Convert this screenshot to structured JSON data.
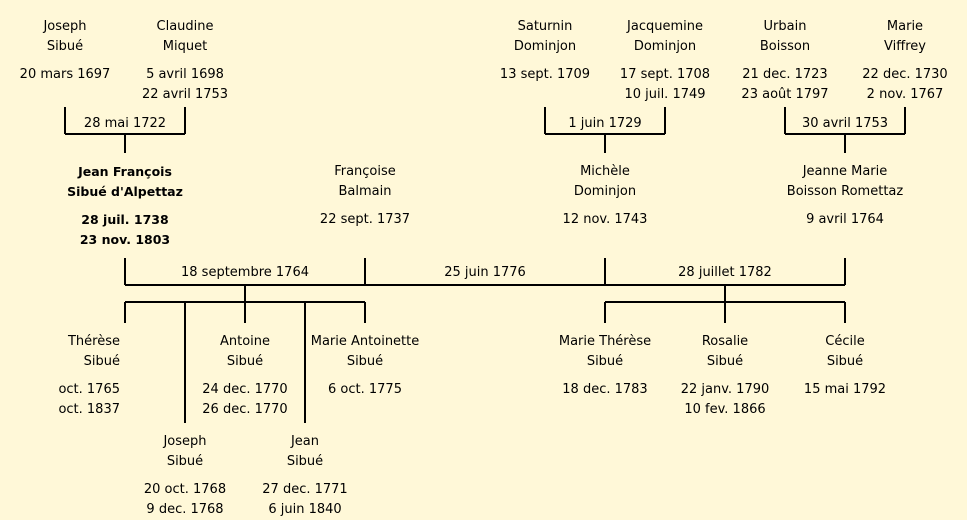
{
  "people": [
    {
      "id": "joseph_sibue_sr",
      "name": [
        "Joseph",
        "Sibué"
      ],
      "dates": [
        "20 mars 1697"
      ]
    },
    {
      "id": "claudine_miquet",
      "name": [
        "Claudine",
        "Miquet"
      ],
      "dates": [
        "5 avril 1698",
        "22 avril 1753"
      ]
    },
    {
      "id": "saturnin_dominjon",
      "name": [
        "Saturnin",
        "Dominjon"
      ],
      "dates": [
        "13 sept. 1709"
      ]
    },
    {
      "id": "jacquemine_dominjon",
      "name": [
        "Jacquemine",
        "Dominjon"
      ],
      "dates": [
        "17 sept. 1708",
        "10 juil. 1749"
      ]
    },
    {
      "id": "urbain_boisson",
      "name": [
        "Urbain",
        "Boisson"
      ],
      "dates": [
        "21 dec. 1723",
        "23 août 1797"
      ]
    },
    {
      "id": "marie_viffrey",
      "name": [
        "Marie",
        "Viffrey"
      ],
      "dates": [
        "22 dec. 1730",
        "2 nov. 1767"
      ]
    },
    {
      "id": "jean_francois",
      "name": [
        "Jean François",
        "Sibué d'Alpettaz"
      ],
      "dates": [
        "28 juil. 1738",
        "23 nov. 1803"
      ],
      "bold": true
    },
    {
      "id": "francoise_balmain",
      "name": [
        "Françoise",
        "Balmain"
      ],
      "dates": [
        "22 sept. 1737"
      ]
    },
    {
      "id": "michele_dominjon",
      "name": [
        "Michèle",
        "Dominjon"
      ],
      "dates": [
        "12 nov. 1743"
      ]
    },
    {
      "id": "jeanne_marie",
      "name": [
        "Jeanne Marie",
        "Boisson Romettaz"
      ],
      "dates": [
        "9 avril 1764"
      ]
    },
    {
      "id": "therese",
      "name": [
        "Thérèse",
        "Sibué"
      ],
      "dates": [
        "oct. 1765",
        "oct. 1837"
      ]
    },
    {
      "id": "antoine",
      "name": [
        "Antoine",
        "Sibué"
      ],
      "dates": [
        "24 dec. 1770",
        "26 dec. 1770"
      ]
    },
    {
      "id": "marie_antoinette",
      "name": [
        "Marie Antoinette",
        "Sibué"
      ],
      "dates": [
        "6 oct. 1775"
      ]
    },
    {
      "id": "joseph_jr",
      "name": [
        "Joseph",
        "Sibué"
      ],
      "dates": [
        "20 oct. 1768",
        "9 dec. 1768"
      ]
    },
    {
      "id": "jean",
      "name": [
        "Jean",
        "Sibué"
      ],
      "dates": [
        "27 dec. 1771",
        "6 juin 1840"
      ]
    },
    {
      "id": "marie_therese",
      "name": [
        "Marie Thérèse",
        "Sibué"
      ],
      "dates": [
        "18 dec. 1783"
      ]
    },
    {
      "id": "rosalie",
      "name": [
        "Rosalie",
        "Sibué"
      ],
      "dates": [
        "22 janv. 1790",
        "10 fev. 1866"
      ]
    },
    {
      "id": "cecile",
      "name": [
        "Cécile",
        "Sibué"
      ],
      "dates": [
        "15 mai 1792"
      ]
    }
  ],
  "marriages": [
    {
      "id": "m1722",
      "label": "28 mai 1722"
    },
    {
      "id": "m1729",
      "label": "1 juin 1729"
    },
    {
      "id": "m1753",
      "label": "30 avril 1753"
    },
    {
      "id": "m1764",
      "label": "18 septembre 1764"
    },
    {
      "id": "m1776",
      "label": "25 juin 1776"
    },
    {
      "id": "m1782",
      "label": "28 juillet 1782"
    }
  ],
  "colors": {
    "background": "#fff8d8",
    "line": "#000000"
  }
}
